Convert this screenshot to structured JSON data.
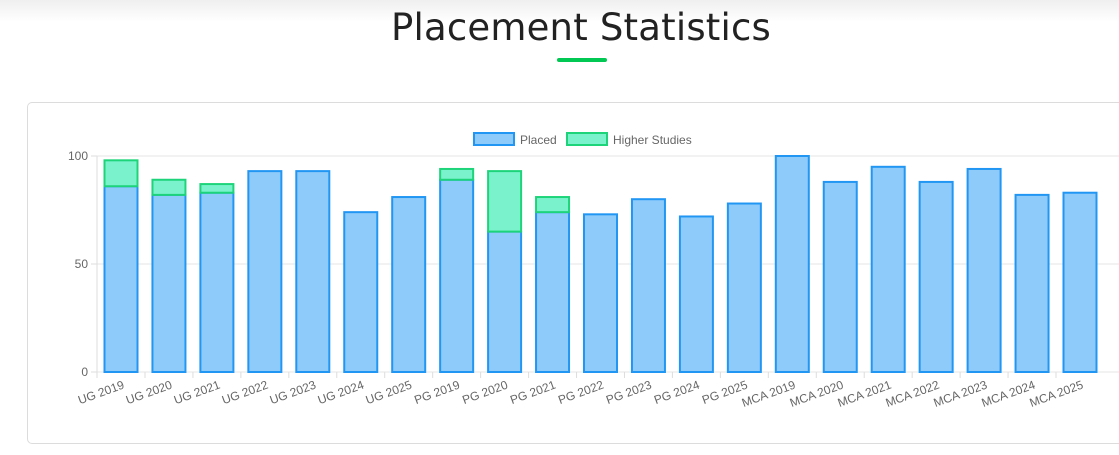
{
  "page": {
    "title": "Placement Statistics"
  },
  "colors": {
    "accent": "#00c853",
    "placed_fill": "#8ecbfb",
    "placed_border": "#2196f3",
    "higher_fill": "#7af2cc",
    "higher_border": "#1ed47a",
    "grid": "#e6e6e6",
    "tick_text": "#666666"
  },
  "chart_data": {
    "type": "bar",
    "stacked": true,
    "categories": [
      "UG 2019",
      "UG 2020",
      "UG 2021",
      "UG 2022",
      "UG 2023",
      "UG 2024",
      "UG 2025",
      "PG 2019",
      "PG 2020",
      "PG 2021",
      "PG 2022",
      "PG 2023",
      "PG 2024",
      "PG 2025",
      "MCA 2019",
      "MCA 2020",
      "MCA 2021",
      "MCA 2022",
      "MCA 2023",
      "MCA 2024",
      "MCA 2025"
    ],
    "series": [
      {
        "name": "Placed",
        "values": [
          86,
          82,
          83,
          93,
          93,
          74,
          81,
          89,
          65,
          74,
          73,
          80,
          72,
          78,
          100,
          88,
          95,
          88,
          94,
          82,
          83
        ]
      },
      {
        "name": "Higher Studies",
        "values": [
          12,
          7,
          4,
          0,
          0,
          0,
          0,
          5,
          28,
          7,
          0,
          0,
          0,
          0,
          0,
          0,
          0,
          0,
          0,
          0,
          0
        ]
      }
    ],
    "yticks": [
      0,
      50,
      100
    ],
    "ylim": [
      0,
      100
    ],
    "legend_position": "top",
    "grid": true,
    "xlabel": "",
    "ylabel": ""
  }
}
